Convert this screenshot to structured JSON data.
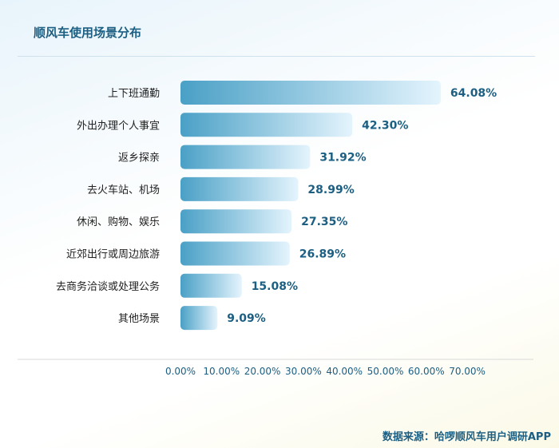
{
  "chart_data": {
    "type": "bar",
    "orientation": "horizontal",
    "title": "顺风车使用场景分布",
    "categories": [
      "上下班通勤",
      "外出办理个人事宜",
      "返乡探亲",
      "去火车站、机场",
      "休闲、购物、娱乐",
      "近郊出行或周边旅游",
      "去商务洽谈或处理公务",
      "其他场景"
    ],
    "values": [
      64.08,
      42.3,
      31.92,
      28.99,
      27.35,
      26.89,
      15.08,
      9.09
    ],
    "value_labels": [
      "64.08%",
      "42.30%",
      "31.92%",
      "28.99%",
      "27.35%",
      "26.89%",
      "15.08%",
      "9.09%"
    ],
    "x_ticks": [
      "0.00%",
      "10.00%",
      "20.00%",
      "30.00%",
      "40.00%",
      "50.00%",
      "60.00%",
      "70.00%"
    ],
    "xlim": [
      0,
      70
    ],
    "grid": false,
    "bar_color_start": "#4aa0c6",
    "bar_color_end": "#e4f4fd",
    "accent_color": "#1c5f82"
  },
  "source": "数据来源：哈啰顺风车用户调研APP"
}
